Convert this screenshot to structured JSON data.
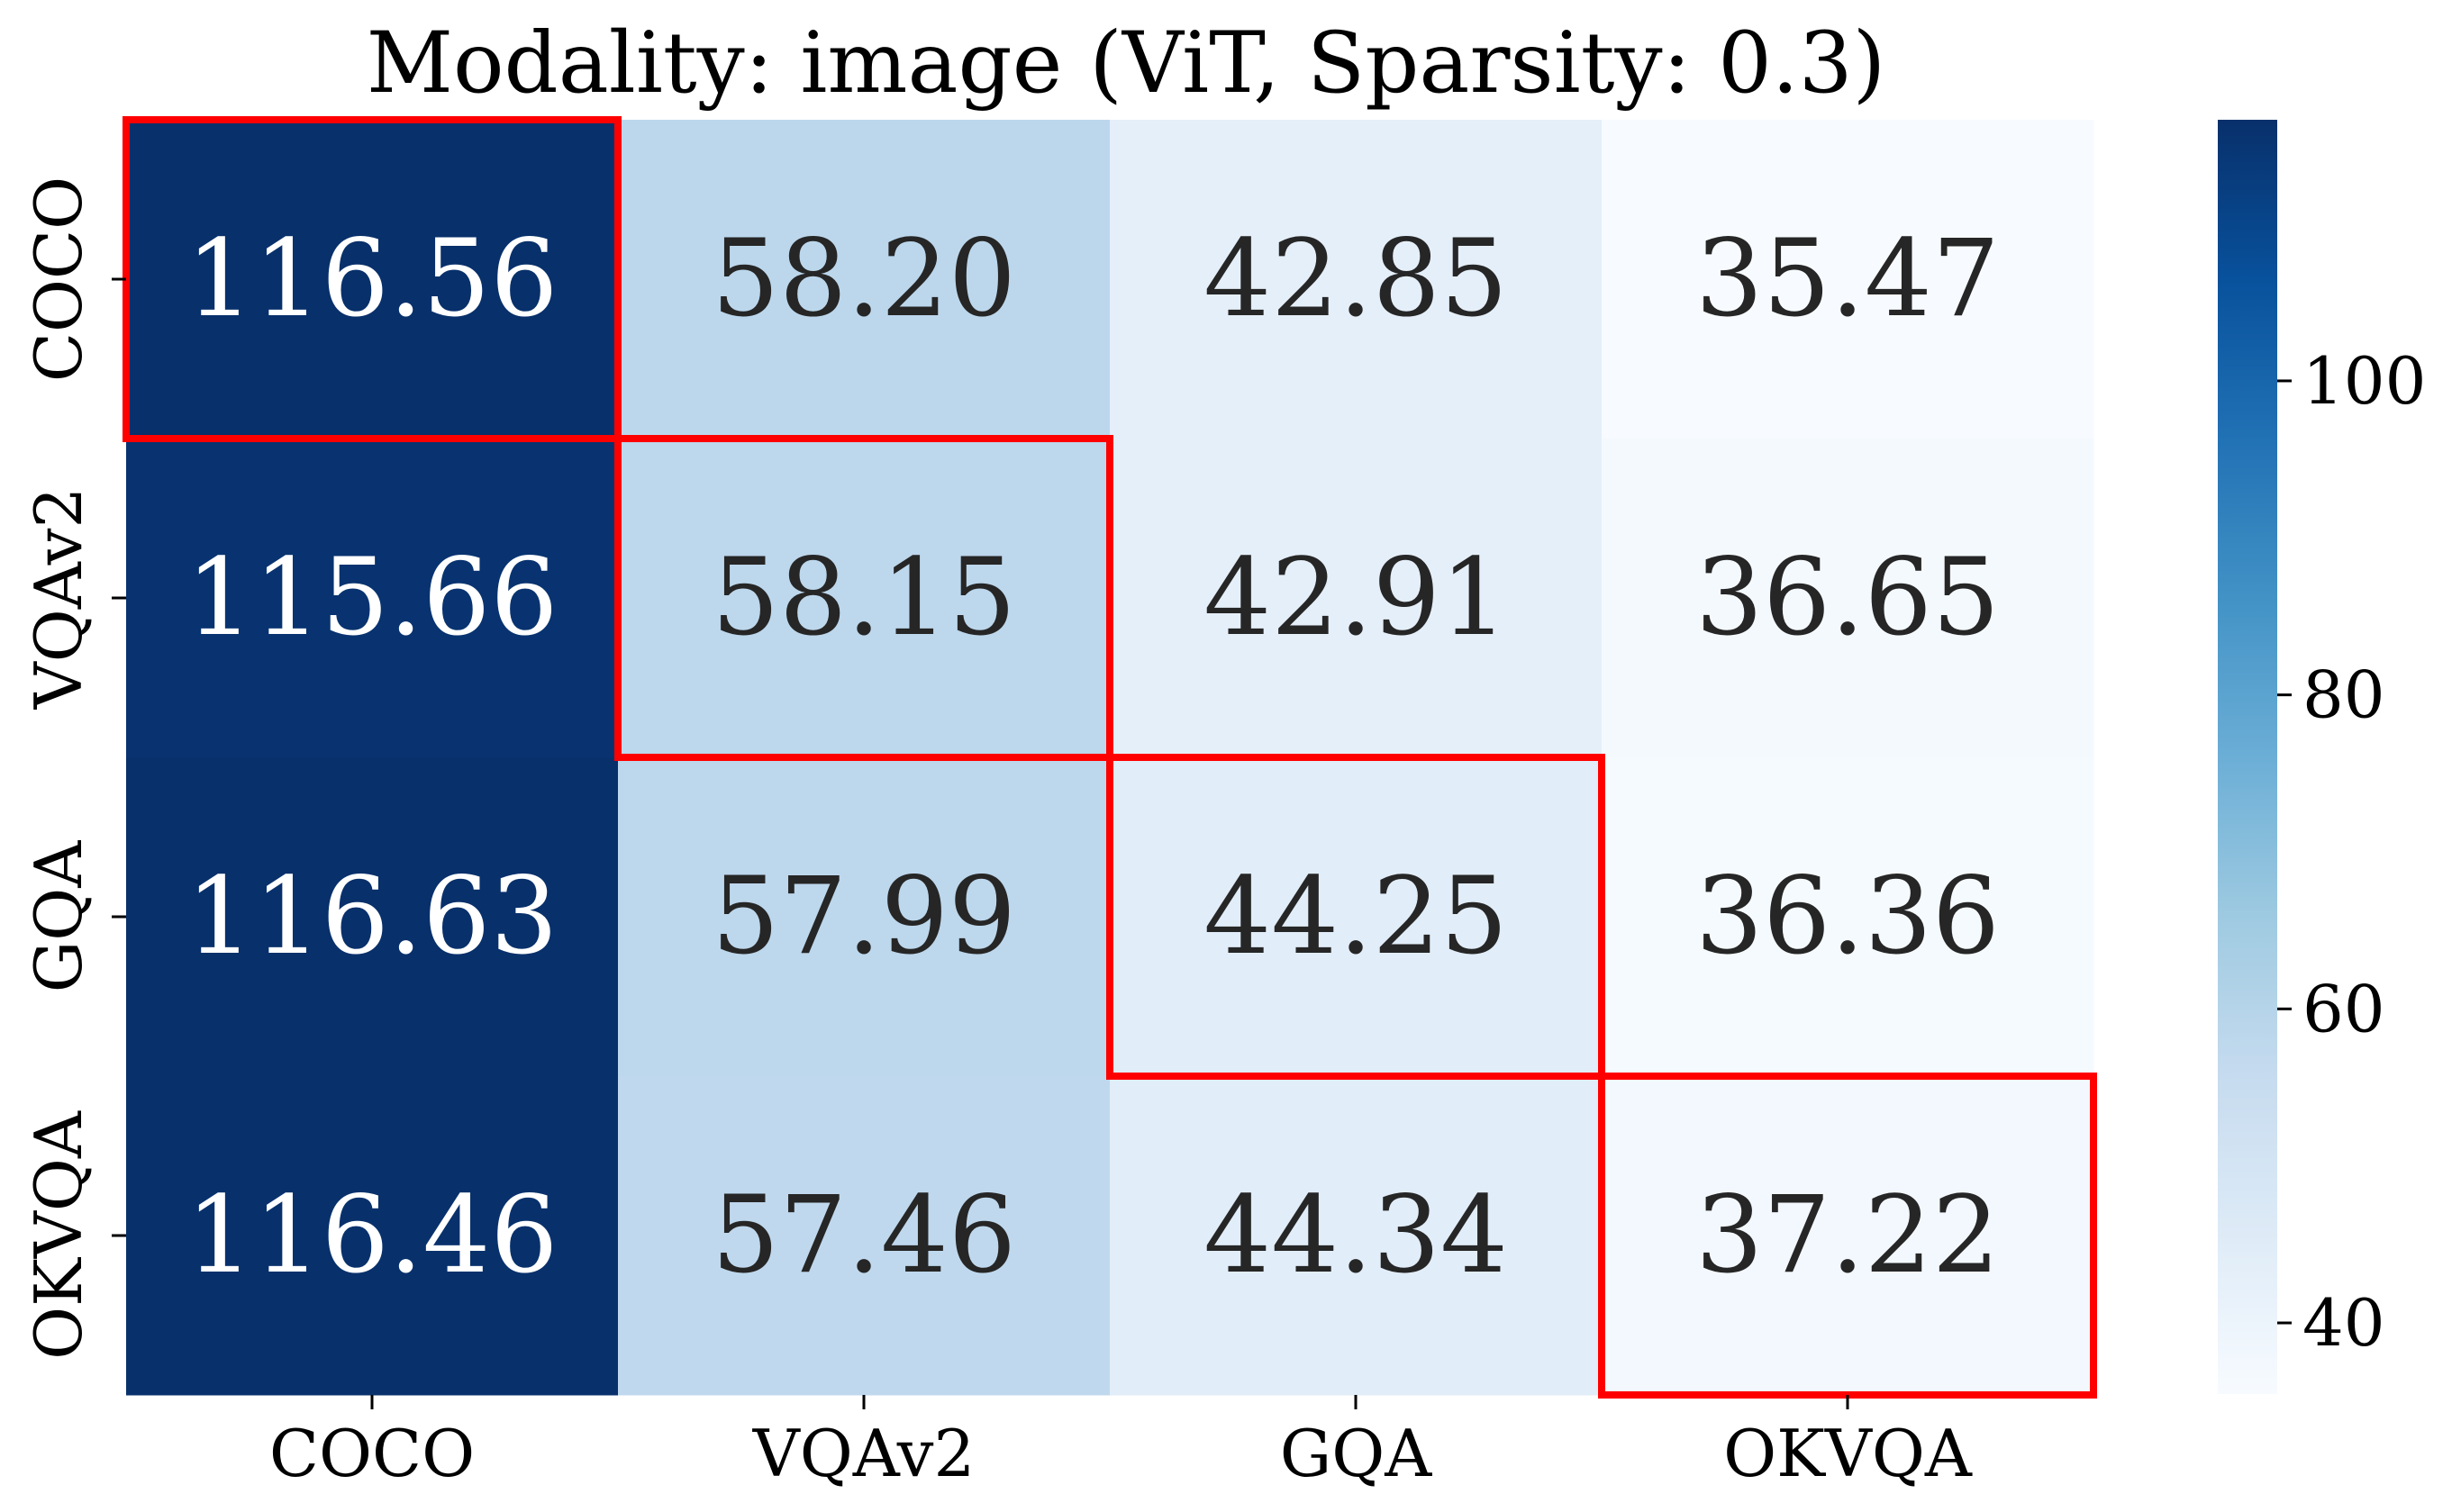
{
  "chart_data": {
    "type": "heatmap",
    "title": "Modality: image (ViT, Sparsity: 0.3)",
    "rows": [
      "COCO",
      "VQAv2",
      "GQA",
      "OKVQA"
    ],
    "columns": [
      "COCO",
      "VQAv2",
      "GQA",
      "OKVQA"
    ],
    "values": [
      [
        116.56,
        58.2,
        42.85,
        35.47
      ],
      [
        115.66,
        58.15,
        42.91,
        36.65
      ],
      [
        116.63,
        57.99,
        44.25,
        36.36
      ],
      [
        116.46,
        57.46,
        44.34,
        37.22
      ]
    ],
    "value_labels": [
      [
        "116.56",
        "58.20",
        "42.85",
        "35.47"
      ],
      [
        "115.66",
        "58.15",
        "42.91",
        "36.65"
      ],
      [
        "116.63",
        "57.99",
        "44.25",
        "36.36"
      ],
      [
        "116.46",
        "57.46",
        "44.34",
        "37.22"
      ]
    ],
    "highlighted_cells": [
      [
        0,
        0
      ],
      [
        1,
        1
      ],
      [
        2,
        2
      ],
      [
        3,
        3
      ]
    ],
    "highlight_color": "#ff0000",
    "colormap": "Blues",
    "color_range": [
      35.47,
      116.63
    ],
    "colorbar_ticks": [
      40,
      60,
      80,
      100
    ],
    "xlabel": "",
    "ylabel": ""
  }
}
